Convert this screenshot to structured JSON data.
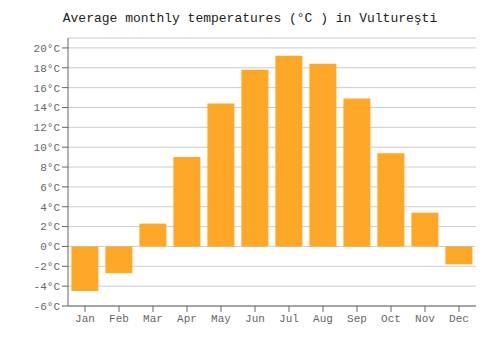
{
  "chart_data": {
    "type": "bar",
    "title": "Average monthly temperatures (°C ) in Vultureşti",
    "categories": [
      "Jan",
      "Feb",
      "Mar",
      "Apr",
      "May",
      "Jun",
      "Jul",
      "Aug",
      "Sep",
      "Oct",
      "Nov",
      "Dec"
    ],
    "values": [
      -4.5,
      -2.7,
      2.3,
      9.0,
      14.4,
      17.8,
      19.2,
      18.4,
      14.9,
      9.4,
      3.4,
      -1.8
    ],
    "color": "#FFA726",
    "ylim": [
      -6,
      21
    ],
    "yticks": [
      {
        "value": -6,
        "label": "-6°C"
      },
      {
        "value": -4,
        "label": "-4°C"
      },
      {
        "value": -2,
        "label": "-2°C"
      },
      {
        "value": 0,
        "label": "0°C"
      },
      {
        "value": 2,
        "label": "2°C"
      },
      {
        "value": 4,
        "label": "4°C"
      },
      {
        "value": 6,
        "label": "6°C"
      },
      {
        "value": 8,
        "label": "8°C"
      },
      {
        "value": 10,
        "label": "10°C"
      },
      {
        "value": 12,
        "label": "12°C"
      },
      {
        "value": 14,
        "label": "14°C"
      },
      {
        "value": 16,
        "label": "16°C"
      },
      {
        "value": 18,
        "label": "18°C"
      },
      {
        "value": 20,
        "label": "20°C"
      }
    ],
    "grid": true
  }
}
